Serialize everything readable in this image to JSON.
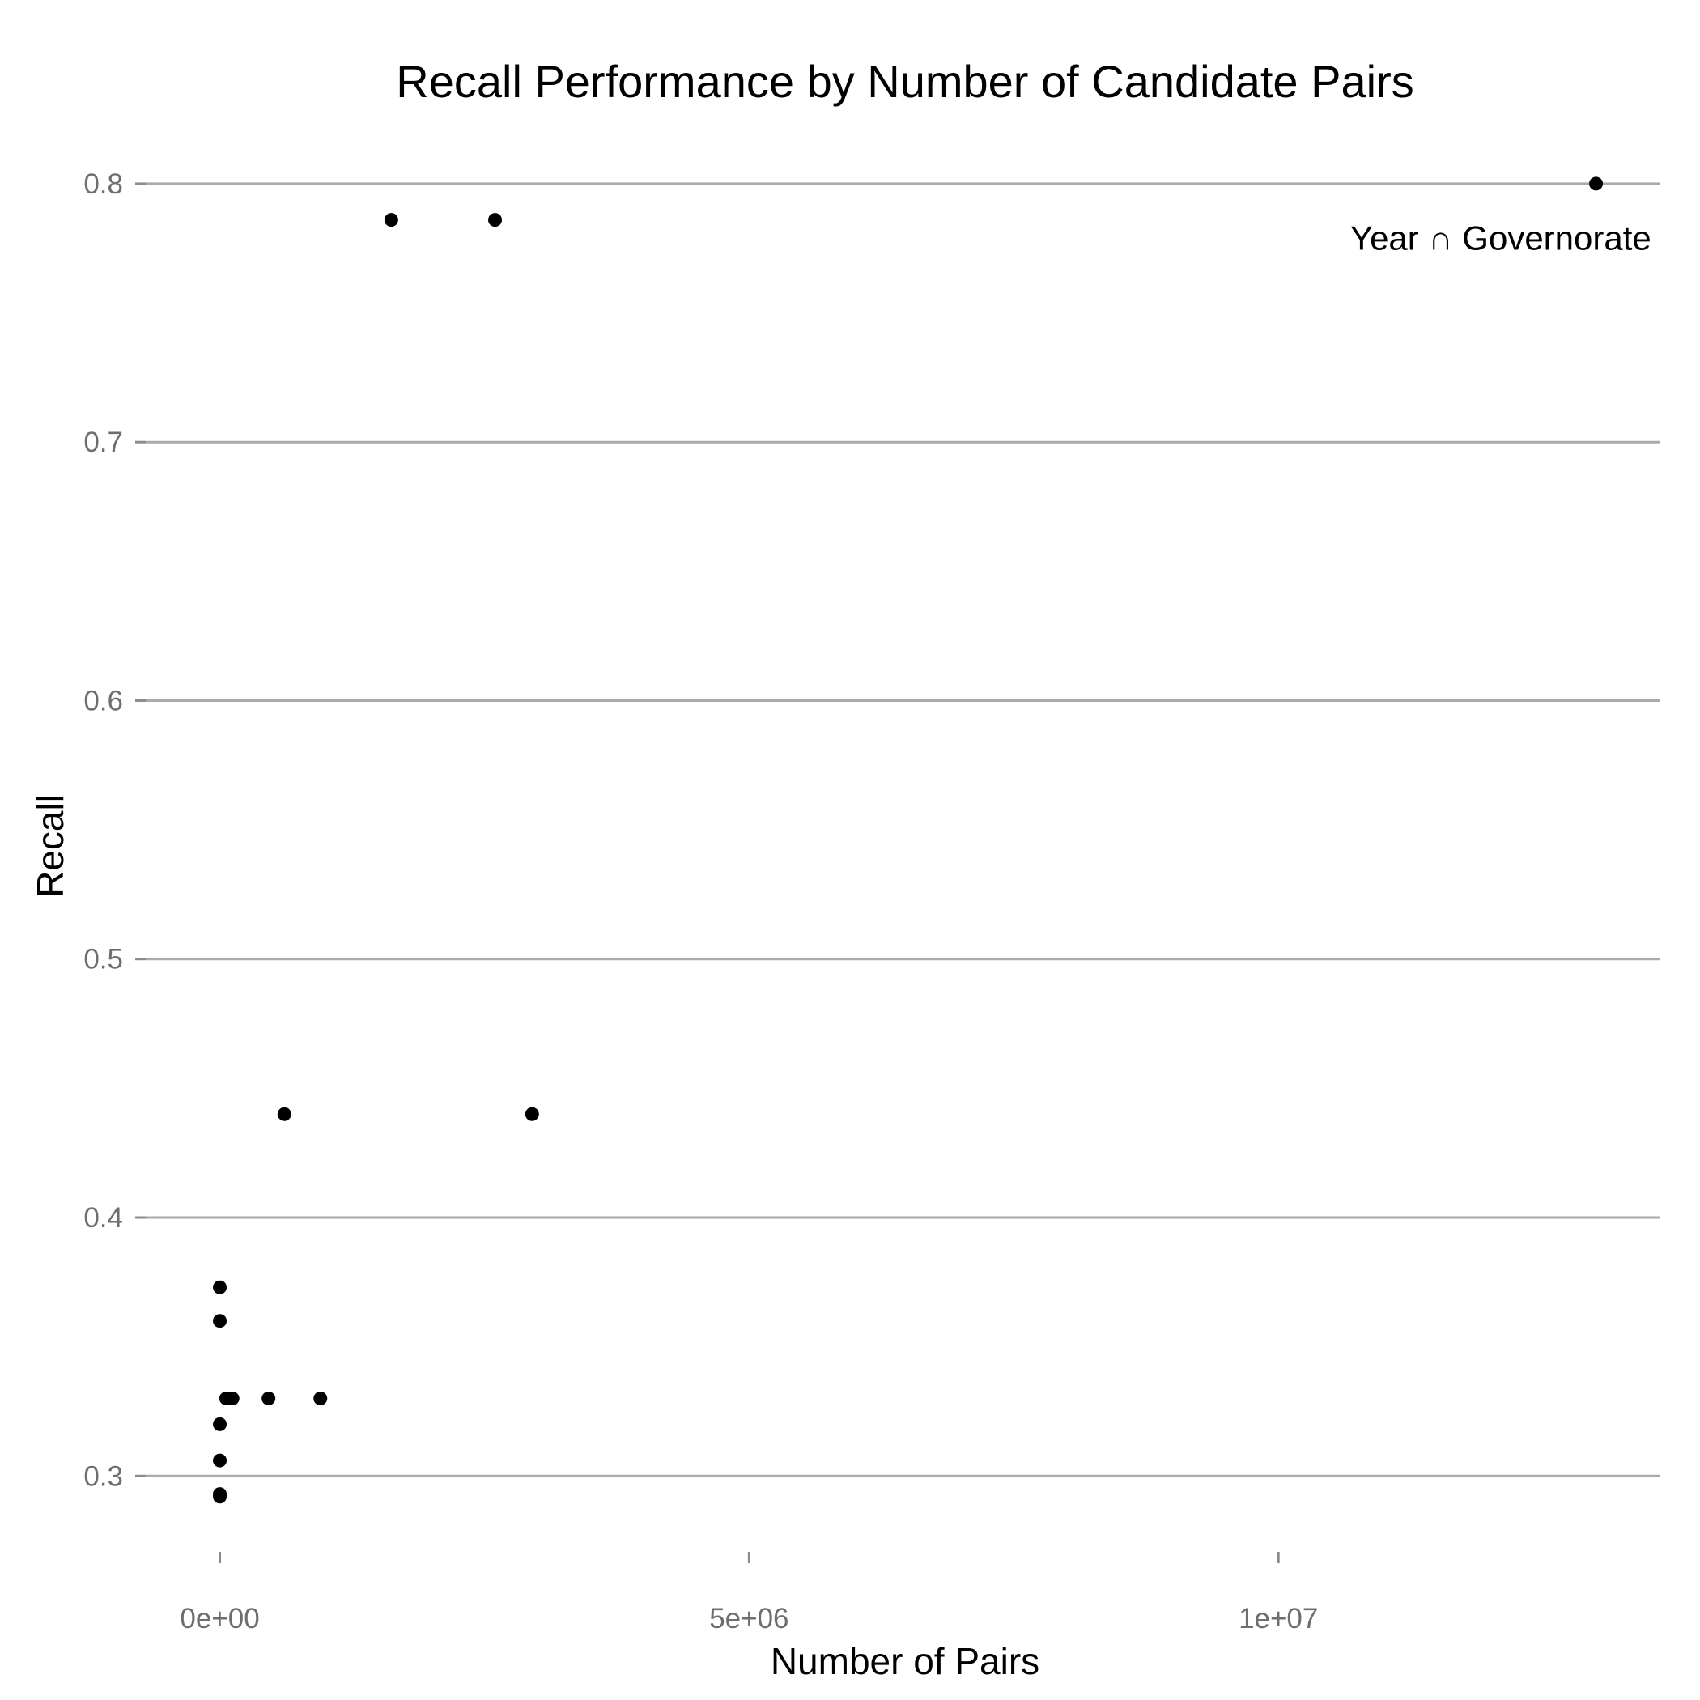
{
  "chart_data": {
    "type": "scatter",
    "title": "Recall Performance by Number of Candidate Pairs",
    "xlabel": "Number of Pairs",
    "ylabel": "Recall",
    "xlim": [
      -700000,
      13600000
    ],
    "ylim": [
      0.265,
      0.81
    ],
    "x_ticks": [
      {
        "value": 0,
        "label": "0e+00"
      },
      {
        "value": 5000000,
        "label": "5e+06"
      },
      {
        "value": 10000000,
        "label": "1e+07"
      }
    ],
    "y_ticks": [
      {
        "value": 0.3,
        "label": "0.3"
      },
      {
        "value": 0.4,
        "label": "0.4"
      },
      {
        "value": 0.5,
        "label": "0.5"
      },
      {
        "value": 0.6,
        "label": "0.6"
      },
      {
        "value": 0.7,
        "label": "0.7"
      },
      {
        "value": 0.8,
        "label": "0.8"
      }
    ],
    "grid": "horizontal",
    "legend": "none",
    "points": [
      {
        "x": 13000000,
        "y": 0.8
      },
      {
        "x": 1620000,
        "y": 0.786
      },
      {
        "x": 2600000,
        "y": 0.786
      },
      {
        "x": 610000,
        "y": 0.44
      },
      {
        "x": 2950000,
        "y": 0.44
      },
      {
        "x": 0,
        "y": 0.373
      },
      {
        "x": 0,
        "y": 0.36
      },
      {
        "x": 60000,
        "y": 0.33
      },
      {
        "x": 120000,
        "y": 0.33
      },
      {
        "x": 460000,
        "y": 0.33
      },
      {
        "x": 950000,
        "y": 0.33
      },
      {
        "x": 0,
        "y": 0.32
      },
      {
        "x": 0,
        "y": 0.306
      },
      {
        "x": 0,
        "y": 0.293
      },
      {
        "x": 0,
        "y": 0.292
      }
    ],
    "annotations": [
      {
        "text": "Year ∩ Governorate",
        "x": 12100000,
        "y": 0.786
      }
    ],
    "colors": {
      "point": "#000000",
      "grid": "#aaaaaa",
      "tick_text": "#6e6e6e"
    }
  }
}
